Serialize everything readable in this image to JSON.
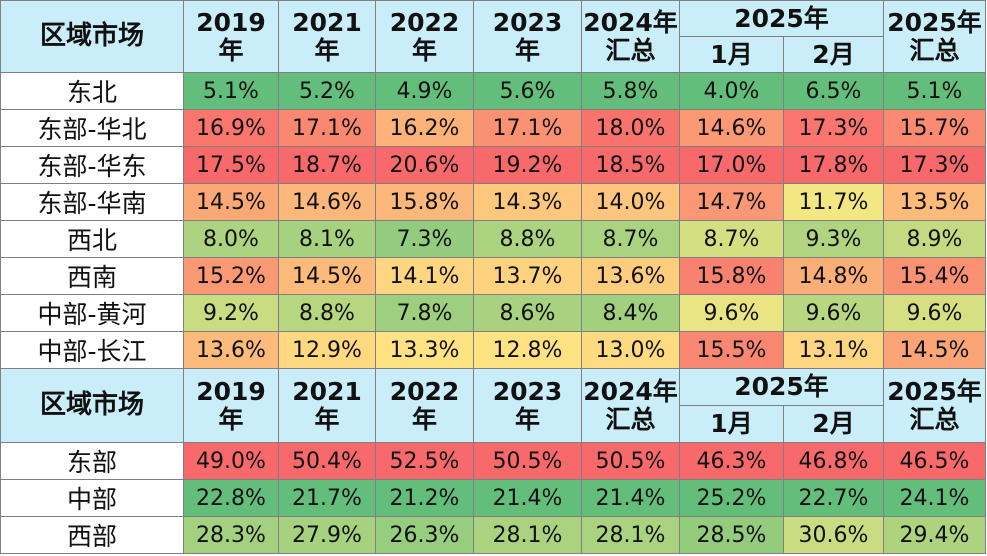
{
  "colors": {
    "header_bg": "#c9eef9",
    "scale_low": "#63be7b",
    "scale_mid": "#ffeb84",
    "scale_high": "#f8696b"
  },
  "chart_data": [
    {
      "type": "table",
      "header": {
        "region": "区域市场",
        "columns": [
          {
            "top": "2019",
            "bottom": "年"
          },
          {
            "top": "2021",
            "bottom": "年"
          },
          {
            "top": "2022",
            "bottom": "年"
          },
          {
            "top": "2023",
            "bottom": "年"
          },
          {
            "top": "2024年",
            "bottom": "汇总"
          },
          {
            "group": "2025年",
            "bottom": "1月"
          },
          {
            "group": "2025年",
            "bottom": "2月"
          },
          {
            "top": "2025年",
            "bottom": "汇总"
          }
        ]
      },
      "rows": [
        {
          "region": "东北",
          "values": [
            "5.1%",
            "5.2%",
            "4.9%",
            "5.6%",
            "5.8%",
            "4.0%",
            "6.5%",
            "5.1%"
          ]
        },
        {
          "region": "东部-华北",
          "values": [
            "16.9%",
            "17.1%",
            "16.2%",
            "17.1%",
            "18.0%",
            "14.6%",
            "17.3%",
            "15.7%"
          ]
        },
        {
          "region": "东部-华东",
          "values": [
            "17.5%",
            "18.7%",
            "20.6%",
            "19.2%",
            "18.5%",
            "17.0%",
            "17.8%",
            "17.3%"
          ]
        },
        {
          "region": "东部-华南",
          "values": [
            "14.5%",
            "14.6%",
            "15.8%",
            "14.3%",
            "14.0%",
            "14.7%",
            "11.7%",
            "13.5%"
          ]
        },
        {
          "region": "西北",
          "values": [
            "8.0%",
            "8.1%",
            "7.3%",
            "8.8%",
            "8.7%",
            "8.7%",
            "9.3%",
            "8.9%"
          ]
        },
        {
          "region": "西南",
          "values": [
            "15.2%",
            "14.5%",
            "14.1%",
            "13.7%",
            "13.6%",
            "15.8%",
            "14.8%",
            "15.4%"
          ]
        },
        {
          "region": "中部-黄河",
          "values": [
            "9.2%",
            "8.8%",
            "7.8%",
            "8.6%",
            "8.4%",
            "9.6%",
            "9.6%",
            "9.6%"
          ]
        },
        {
          "region": "中部-长江",
          "values": [
            "13.6%",
            "12.9%",
            "13.3%",
            "12.8%",
            "13.0%",
            "15.5%",
            "13.1%",
            "14.5%"
          ]
        }
      ]
    },
    {
      "type": "table",
      "header": {
        "region": "区域市场",
        "columns": [
          {
            "top": "2019",
            "bottom": "年"
          },
          {
            "top": "2021",
            "bottom": "年"
          },
          {
            "top": "2022",
            "bottom": "年"
          },
          {
            "top": "2023",
            "bottom": "年"
          },
          {
            "top": "2024年",
            "bottom": "汇总"
          },
          {
            "group": "2025年",
            "bottom": "1月"
          },
          {
            "group": "2025年",
            "bottom": "2月"
          },
          {
            "top": "2025年",
            "bottom": "汇总"
          }
        ]
      },
      "rows": [
        {
          "region": "东部",
          "values": [
            "49.0%",
            "50.4%",
            "52.5%",
            "50.5%",
            "50.5%",
            "46.3%",
            "46.8%",
            "46.5%"
          ]
        },
        {
          "region": "中部",
          "values": [
            "22.8%",
            "21.7%",
            "21.2%",
            "21.4%",
            "21.4%",
            "25.2%",
            "22.7%",
            "24.1%"
          ]
        },
        {
          "region": "西部",
          "values": [
            "28.3%",
            "27.9%",
            "26.3%",
            "28.1%",
            "28.1%",
            "28.5%",
            "30.6%",
            "29.4%"
          ]
        }
      ]
    }
  ]
}
